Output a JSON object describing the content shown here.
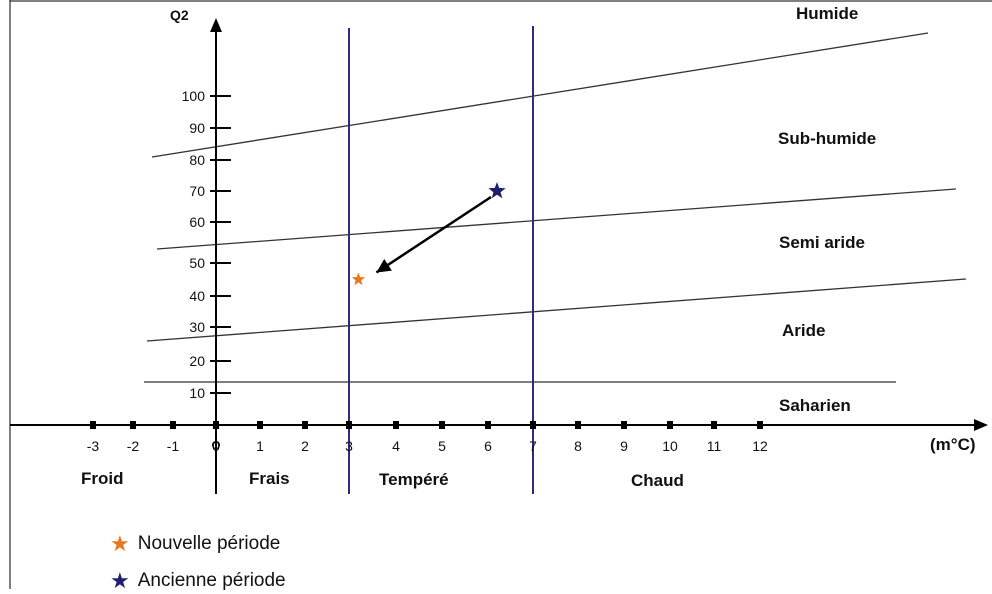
{
  "chart_data": {
    "type": "scatter",
    "title": "",
    "ylabel": "Q2",
    "xlabel": "(m°C)",
    "x_ticks": [
      "-3",
      "-2",
      "-1",
      "0",
      "1",
      "2",
      "3",
      "4",
      "5",
      "6",
      "7",
      "8",
      "9",
      "10",
      "11",
      "12"
    ],
    "y_ticks": [
      "10",
      "20",
      "30",
      "40",
      "50",
      "60",
      "70",
      "80",
      "90",
      "100"
    ],
    "xlim": [
      -3,
      12
    ],
    "ylim": [
      10,
      100
    ],
    "zones_bioclimatic": [
      "Humide",
      "Sub-humide",
      "Semi aride",
      "Aride",
      "Saharien"
    ],
    "zones_thermal": [
      "Froid",
      "Frais",
      "Tempéré",
      "Chaud"
    ],
    "thermal_boundaries_x": [
      0,
      3,
      7
    ],
    "series": [
      {
        "name": "Nouvelle période",
        "color": "#e87722",
        "points": [
          {
            "x": 3.2,
            "y": 45
          }
        ]
      },
      {
        "name": "Ancienne période",
        "color": "#1f1f6e",
        "points": [
          {
            "x": 6.2,
            "y": 70
          }
        ]
      }
    ],
    "annotation_arrow": {
      "from_series": "Ancienne période",
      "to_series": "Nouvelle période"
    },
    "colors": {
      "boundary": "#2b2b8a",
      "axis": "#000000"
    }
  }
}
